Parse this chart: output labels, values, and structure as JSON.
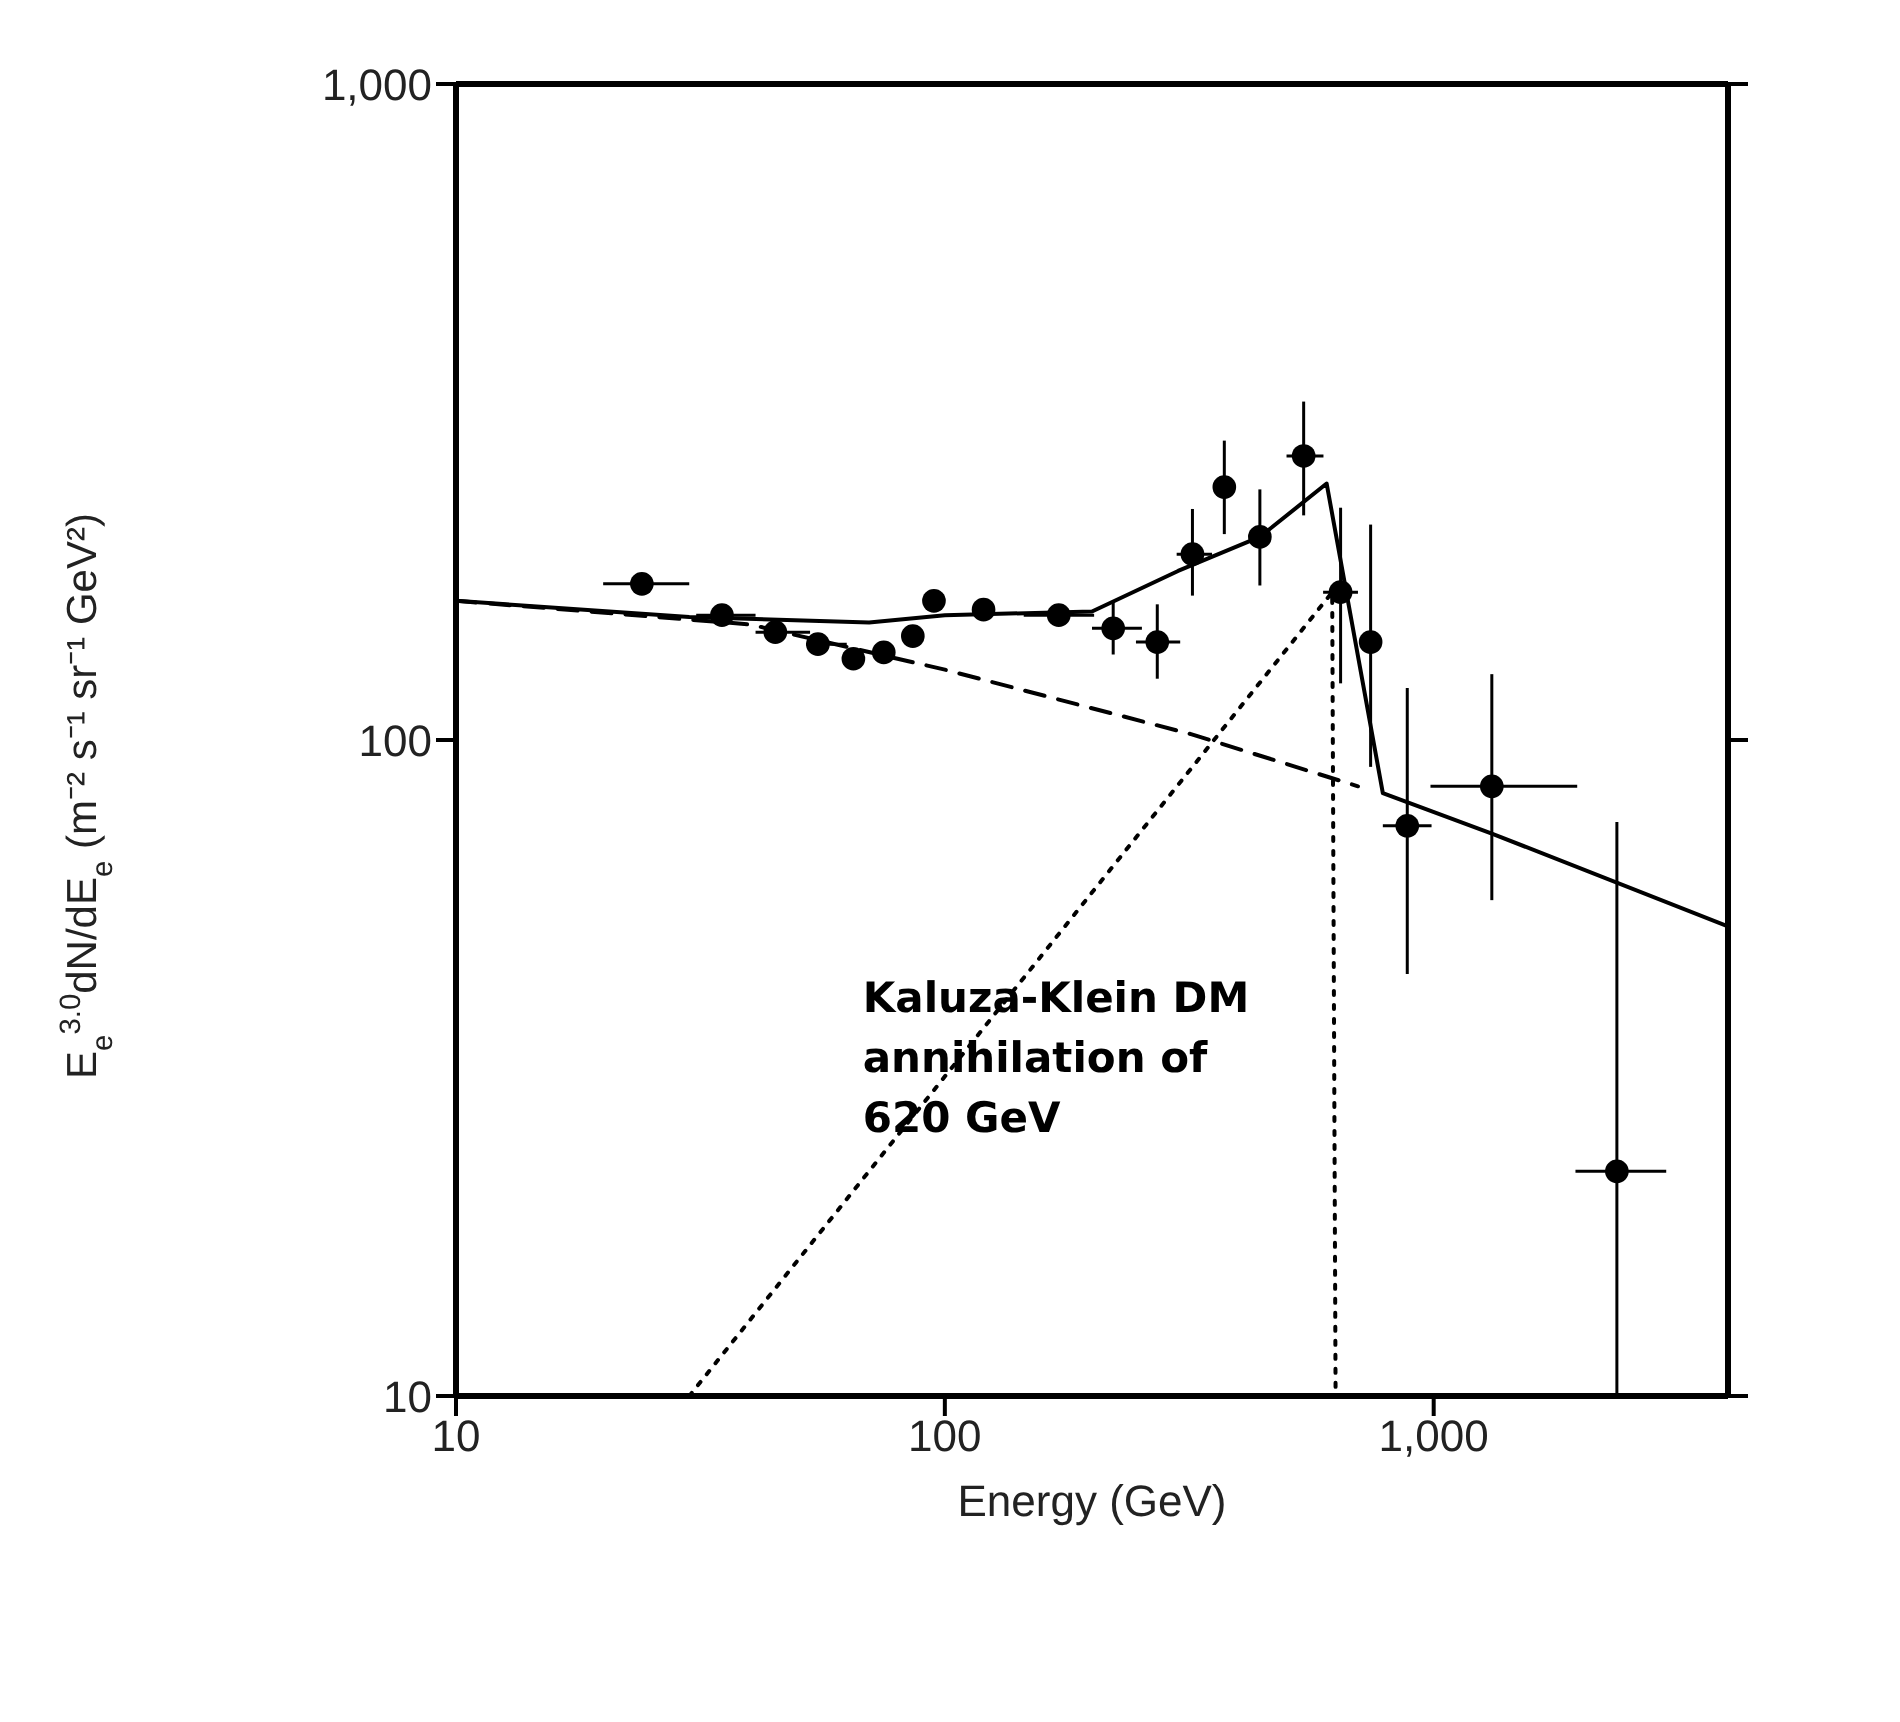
{
  "chart_data": {
    "type": "scatter",
    "xlabel": "Energy (GeV)",
    "ylabel": "E$_{e}$$^{3.0}$dN/dE$_{e}$ (m⁻² s⁻¹ sr⁻¹ GeV²)",
    "log": "xy",
    "xlim": [
      10,
      4000
    ],
    "ylim": [
      10,
      1000
    ],
    "xticks": [
      10,
      100,
      {
        "value": 1000,
        "label": "1,000"
      }
    ],
    "yticks": [
      10,
      100,
      {
        "value": 1000,
        "label": "1,000"
      }
    ],
    "annotations": [
      "Kaluza-Klein DM\nannihilation of\n620 GeV"
    ],
    "series": [
      {
        "marker": "circle",
        "color": "#000000",
        "x": [
          24,
          35,
          45,
          55,
          65,
          75,
          86,
          95,
          120,
          171,
          221,
          272,
          321,
          373,
          441,
          542,
          645,
          743,
          883,
          1315,
          2370
        ],
        "values": [
          173,
          155,
          146,
          140,
          133,
          136,
          144,
          163,
          158,
          155,
          148,
          141,
          192,
          243,
          204,
          271,
          168,
          141,
          74,
          85,
          22
        ],
        "errors": [
          null,
          null,
          null,
          null,
          null,
          null,
          null,
          null,
          null,
          null,
          [
            135,
            163
          ],
          [
            124,
            161
          ],
          [
            166,
            225
          ],
          [
            206,
            286
          ],
          [
            172,
            241
          ],
          [
            220,
            328
          ],
          [
            122,
            226
          ],
          [
            91,
            213
          ],
          [
            44,
            120
          ],
          [
            57,
            126
          ],
          [
            10,
            75
          ]
        ],
        "xerrors": [
          [
            20,
            30
          ],
          [
            31,
            41
          ],
          [
            41,
            53
          ],
          [
            52,
            63
          ],
          null,
          null,
          null,
          null,
          null,
          [
            145,
            202
          ],
          [
            200,
            253
          ],
          [
            246,
            303
          ],
          [
            298,
            352
          ],
          null,
          null,
          [
            500,
            595
          ],
          [
            594,
            700
          ],
          null,
          [
            787,
            990
          ],
          [
            985,
            1966
          ],
          [
            1950,
            2990
          ]
        ]
      },
      {
        "type": "line",
        "line_style": "solid",
        "color": "#000000",
        "x": [
          10,
          30,
          70,
          100,
          200,
          300,
          441,
          604,
          787,
          1315,
          4000
        ],
        "values": [
          163,
          154,
          151,
          155,
          157,
          181,
          204,
          246,
          83,
          72,
          52
        ]
      },
      {
        "type": "line",
        "line_style": "dashed",
        "color": "#000000",
        "x": [
          10,
          40,
          100,
          320,
          700
        ],
        "values": [
          163,
          150,
          128,
          102,
          85
        ]
      },
      {
        "type": "line",
        "line_style": "dotted",
        "color": "#000000",
        "x": [
          30,
          620,
          630
        ],
        "values": [
          10,
          168,
          10
        ]
      }
    ]
  }
}
